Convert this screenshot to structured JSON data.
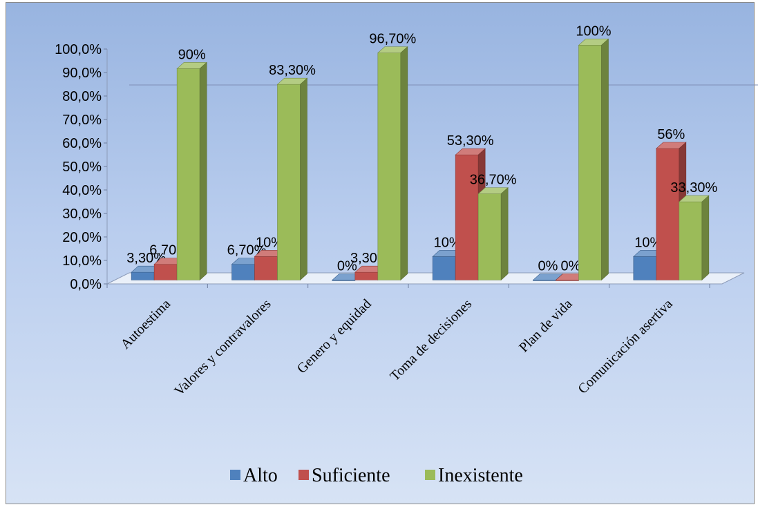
{
  "chart_data": {
    "type": "bar",
    "title": "",
    "xlabel": "",
    "ylabel": "",
    "ylim": [
      0,
      100
    ],
    "y_ticks": [
      "0,0%",
      "10,0%",
      "20,0%",
      "30,0%",
      "40,0%",
      "50,0%",
      "60,0%",
      "70,0%",
      "80,0%",
      "90,0%",
      "100,0%"
    ],
    "categories": [
      "Autoestima",
      "Valores y contravalores",
      "Genero y equidad",
      "Toma de decisiones",
      "Plan de vida",
      "Comunicación asertiva"
    ],
    "series": [
      {
        "name": "Alto",
        "color": "#4f81bd",
        "values": [
          3.3,
          6.7,
          0,
          10,
          0,
          10
        ],
        "labels": [
          "3,30%",
          "6,70%",
          "0%",
          "10%",
          "0%",
          "10%"
        ]
      },
      {
        "name": "Suficiente",
        "color": "#c0504d",
        "values": [
          6.7,
          10,
          3.3,
          53.3,
          0,
          56
        ],
        "labels": [
          "6,70%",
          "10%",
          "3,30%",
          "53,30%",
          "0%",
          "56%"
        ]
      },
      {
        "name": "Inexistente",
        "color": "#9bbb59",
        "values": [
          90,
          83.3,
          96.7,
          36.7,
          100,
          33.3
        ],
        "labels": [
          "90%",
          "83,30%",
          "96,70%",
          "36,70%",
          "100%",
          "33,30%"
        ]
      }
    ],
    "legend_position": "bottom",
    "style": "3d-clustered-column",
    "background": [
      "#98b4e0",
      "#d7e3f5"
    ]
  }
}
